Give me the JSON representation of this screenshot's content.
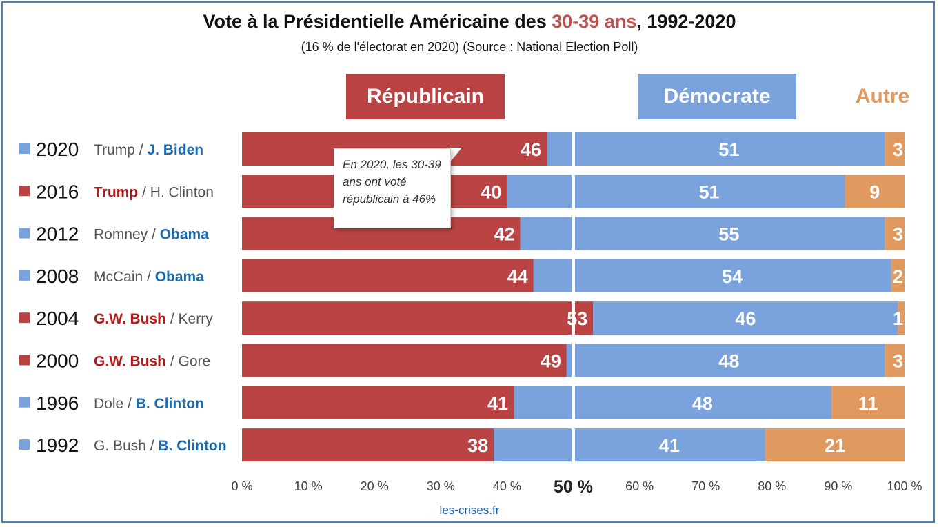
{
  "title": {
    "prefix": "Vote à la Présidentielle Américaine des ",
    "highlight": "30-39 ans",
    "suffix": ", 1992-2020"
  },
  "subtitle": "(16 % de l'électorat en 2020) (Source : National Election Poll)",
  "headers": {
    "republican": "Républicain",
    "democrat": "Démocrate",
    "other": "Autre"
  },
  "colors": {
    "republican": "#b94443",
    "democrat": "#7aa2dc",
    "other": "#e0995f",
    "rep_text": "#b01c1c",
    "dem_text": "#1b6cb0",
    "neutral_text": "#555555"
  },
  "callout": {
    "text": "En 2020, les 30-39 ans ont voté républicain à 46%"
  },
  "source": "les-crises.fr",
  "chart_data": {
    "type": "bar",
    "orientation": "horizontal",
    "stacked": true,
    "categories": [
      "2020",
      "2016",
      "2012",
      "2008",
      "2004",
      "2000",
      "1996",
      "1992"
    ],
    "candidates": [
      {
        "rep": "Trump",
        "dem": "J. Biden",
        "winner": "dem"
      },
      {
        "rep": "Trump",
        "dem": "H. Clinton",
        "winner": "rep"
      },
      {
        "rep": "Romney",
        "dem": "Obama",
        "winner": "dem"
      },
      {
        "rep": "McCain",
        "dem": "Obama",
        "winner": "dem"
      },
      {
        "rep": "G.W. Bush",
        "dem": "Kerry",
        "winner": "rep"
      },
      {
        "rep": "G.W. Bush",
        "dem": "Gore",
        "winner": "rep"
      },
      {
        "rep": "Dole",
        "dem": "B. Clinton",
        "winner": "dem"
      },
      {
        "rep": "G. Bush",
        "dem": "B. Clinton",
        "winner": "dem"
      }
    ],
    "series": [
      {
        "name": "Républicain",
        "values": [
          46,
          40,
          42,
          44,
          53,
          49,
          41,
          38
        ]
      },
      {
        "name": "Démocrate",
        "values": [
          51,
          51,
          55,
          54,
          46,
          48,
          48,
          41
        ]
      },
      {
        "name": "Autre",
        "values": [
          3,
          9,
          3,
          2,
          1,
          3,
          11,
          21
        ]
      }
    ],
    "x_ticks": [
      "0 %",
      "10 %",
      "20 %",
      "30 %",
      "40 %",
      "50 %",
      "60 %",
      "70 %",
      "80 %",
      "90 %",
      "100 %"
    ],
    "xlim": [
      0,
      100
    ],
    "divider_at": 50,
    "grid": false
  }
}
